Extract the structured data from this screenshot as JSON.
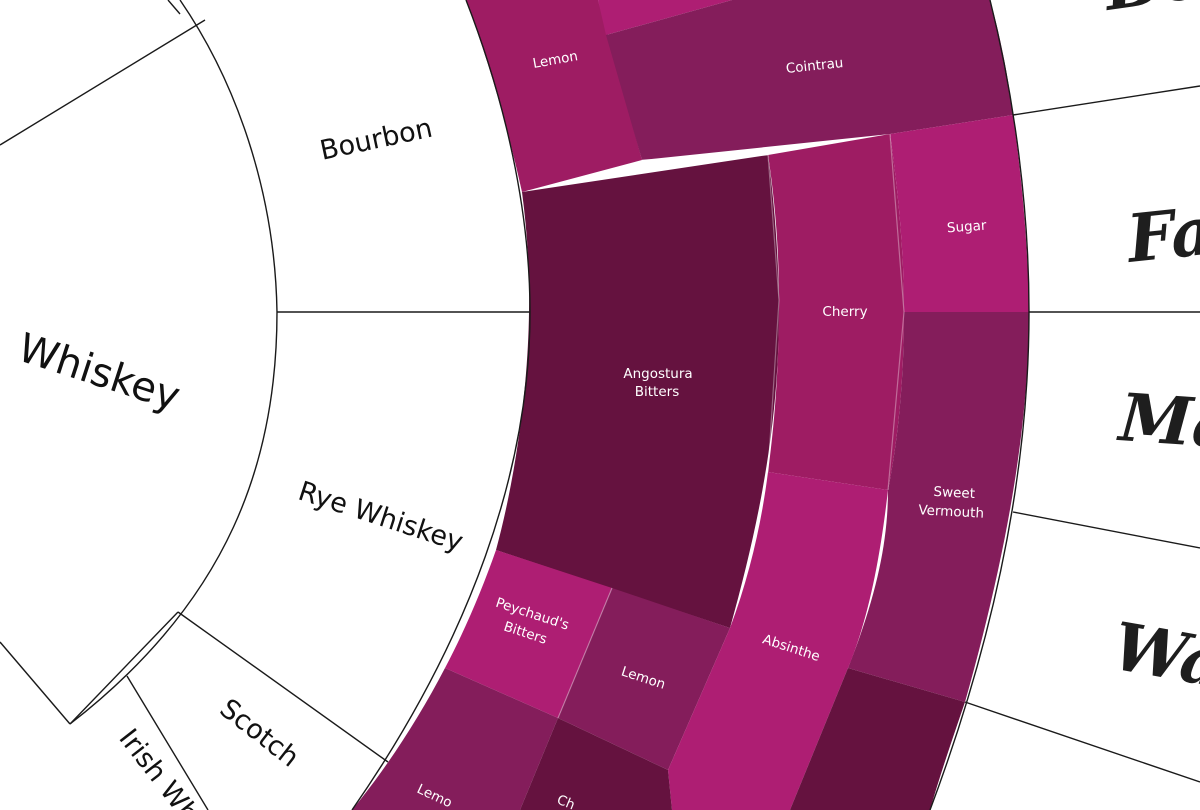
{
  "colors": {
    "dark": "#65123f",
    "medium": "#841d5b",
    "rose": "#9e1c63",
    "bright": "#ae1e73",
    "line": "#1a1a1a",
    "background": "#ffffff"
  },
  "spirit": {
    "label": "Whiskey"
  },
  "types": {
    "bourbon": "Bourbon",
    "rye": "Rye Whiskey",
    "scotch": "Scotch",
    "irish": "Irish Wh"
  },
  "ingredients": {
    "lemon_top": "Lemon",
    "cointreau": "Cointrau",
    "angostura_1": "Angostura",
    "angostura_2": "Bitters",
    "cherry": "Cherry",
    "sugar": "Sugar",
    "sweet_vermouth_1": "Sweet",
    "sweet_vermouth_2": "Vermouth",
    "peychauds_1": "Peychaud's",
    "peychauds_2": "Bitters",
    "lemon_mid": "Lemon",
    "absinthe": "Absinthe",
    "lemon_bottom": "Lemo",
    "cut_label": "Ch"
  },
  "cocktails": {
    "top": "Bo",
    "fa": "Fa",
    "ma": "Ma",
    "wa": "Wa"
  }
}
